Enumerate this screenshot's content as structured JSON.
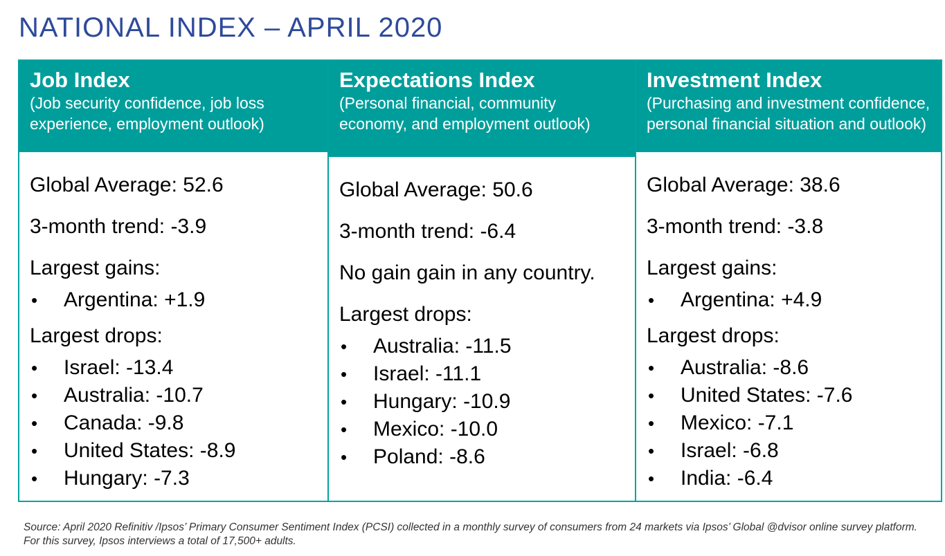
{
  "page": {
    "title": "NATIONAL INDEX – APRIL 2020"
  },
  "colors": {
    "title": "#2e4a9a",
    "header_bg": "#009e9b",
    "border": "#00a3a0"
  },
  "bullet_symbol": "•",
  "columns": [
    {
      "title": "Job Index",
      "description": "(Job security confidence, job loss experience, employment outlook)",
      "global_average": "Global Average: 52.6",
      "trend": "3-month trend: -3.9",
      "gains_label": "Largest gains:",
      "gains": [
        "Argentina: +1.9"
      ],
      "drops_label": "Largest drops:",
      "drops": [
        "Israel: -13.4",
        "Australia: -10.7",
        "Canada: -9.8",
        "United States: -8.9",
        "Hungary: -7.3"
      ]
    },
    {
      "title": "Expectations Index",
      "description": "(Personal financial, community economy, and employment outlook)",
      "global_average": "Global Average: 50.6",
      "trend": "3-month trend: -6.4",
      "no_gain_note": "No gain gain in any country.",
      "drops_label": "Largest drops:",
      "drops": [
        "Australia: -11.5",
        "Israel: -11.1",
        "Hungary: -10.9",
        "Mexico: -10.0",
        "Poland: -8.6"
      ]
    },
    {
      "title": "Investment Index",
      "description": "(Purchasing and investment confidence, personal financial situation and outlook)",
      "global_average": "Global Average: 38.6",
      "trend": "3-month trend: -3.8",
      "gains_label": "Largest gains:",
      "gains": [
        "Argentina: +4.9"
      ],
      "drops_label": "Largest drops:",
      "drops": [
        "Australia: -8.6",
        "United States: -7.6",
        "Mexico: -7.1",
        "Israel: -6.8",
        "India: -6.4"
      ]
    }
  ],
  "footer": {
    "source": "Source: April 2020 Refinitiv /Ipsos’ Primary Consumer Sentiment Index (PCSI) collected in a monthly survey of consumers from 24 markets via Ipsos’ Global @dvisor online survey platform. For this survey, Ipsos interviews a total of 17,500+ adults."
  }
}
